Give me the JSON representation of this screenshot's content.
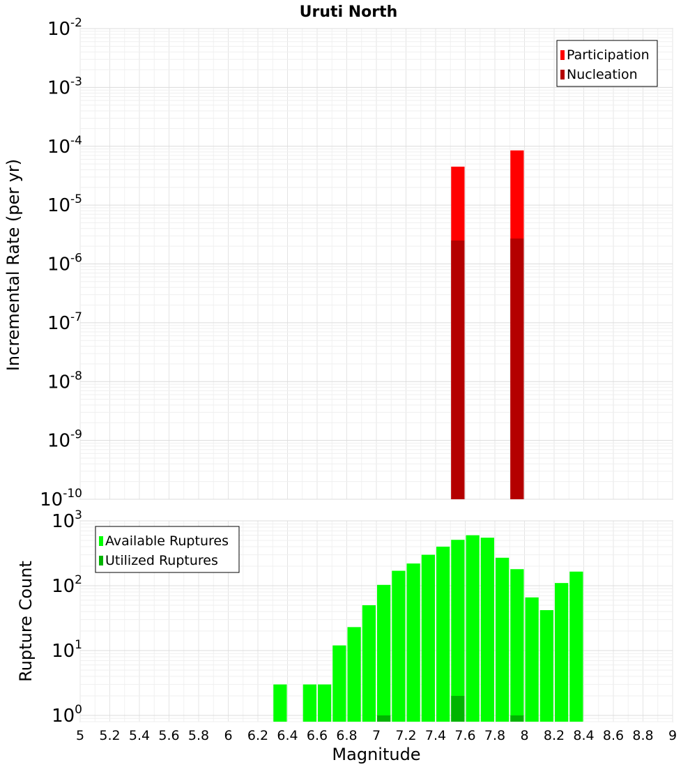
{
  "chart_data": [
    {
      "type": "bar",
      "title": "Uruti North",
      "xlabel": "",
      "ylabel": "Incremental Rate (per yr)",
      "yscale": "log",
      "ylim": [
        1e-10,
        0.01
      ],
      "xlim": [
        5,
        9
      ],
      "bin_width": 0.1,
      "y_ticks": [
        {
          "base": "10",
          "exp": "-10"
        },
        {
          "base": "10",
          "exp": "-9"
        },
        {
          "base": "10",
          "exp": "-8"
        },
        {
          "base": "10",
          "exp": "-7"
        },
        {
          "base": "10",
          "exp": "-6"
        },
        {
          "base": "10",
          "exp": "-5"
        },
        {
          "base": "10",
          "exp": "-4"
        },
        {
          "base": "10",
          "exp": "-3"
        },
        {
          "base": "10",
          "exp": "-2"
        }
      ],
      "legend_position": "top-right",
      "grid": true,
      "series": [
        {
          "name": "Participation",
          "color": "#ff0000",
          "x": [
            7.55,
            7.95
          ],
          "values": [
            4.5e-05,
            8.5e-05
          ]
        },
        {
          "name": "Nucleation",
          "color": "#b40000",
          "x": [
            7.55,
            7.95
          ],
          "values": [
            2.5e-06,
            2.7e-06
          ]
        }
      ]
    },
    {
      "type": "bar",
      "title": "",
      "xlabel": "Magnitude",
      "ylabel": "Rupture Count",
      "yscale": "log",
      "ylim": [
        0.8,
        1000
      ],
      "xlim": [
        5,
        9
      ],
      "bin_width": 0.1,
      "x_ticks": [
        "5",
        "5.2",
        "5.4",
        "5.6",
        "5.8",
        "6",
        "6.2",
        "6.4",
        "6.6",
        "6.8",
        "7",
        "7.2",
        "7.4",
        "7.6",
        "7.8",
        "8",
        "8.2",
        "8.4",
        "8.6",
        "8.8",
        "9"
      ],
      "y_ticks": [
        {
          "base": "10",
          "exp": "0"
        },
        {
          "base": "10",
          "exp": "1"
        },
        {
          "base": "10",
          "exp": "2"
        },
        {
          "base": "10",
          "exp": "3"
        }
      ],
      "legend_position": "top-left",
      "grid": true,
      "series": [
        {
          "name": "Available Ruptures",
          "color": "#00ff00",
          "x": [
            6.35,
            6.55,
            6.65,
            6.75,
            6.85,
            6.95,
            7.05,
            7.15,
            7.25,
            7.35,
            7.45,
            7.55,
            7.65,
            7.75,
            7.85,
            7.95,
            8.05,
            8.15,
            8.25,
            8.35
          ],
          "values": [
            3,
            3,
            3,
            12,
            23,
            50,
            103,
            170,
            220,
            300,
            400,
            510,
            600,
            550,
            270,
            180,
            66,
            42,
            110,
            165
          ]
        },
        {
          "name": "Utilized Ruptures",
          "color": "#00b400",
          "x": [
            7.05,
            7.55,
            7.95
          ],
          "values": [
            1,
            2,
            1
          ]
        }
      ]
    }
  ]
}
